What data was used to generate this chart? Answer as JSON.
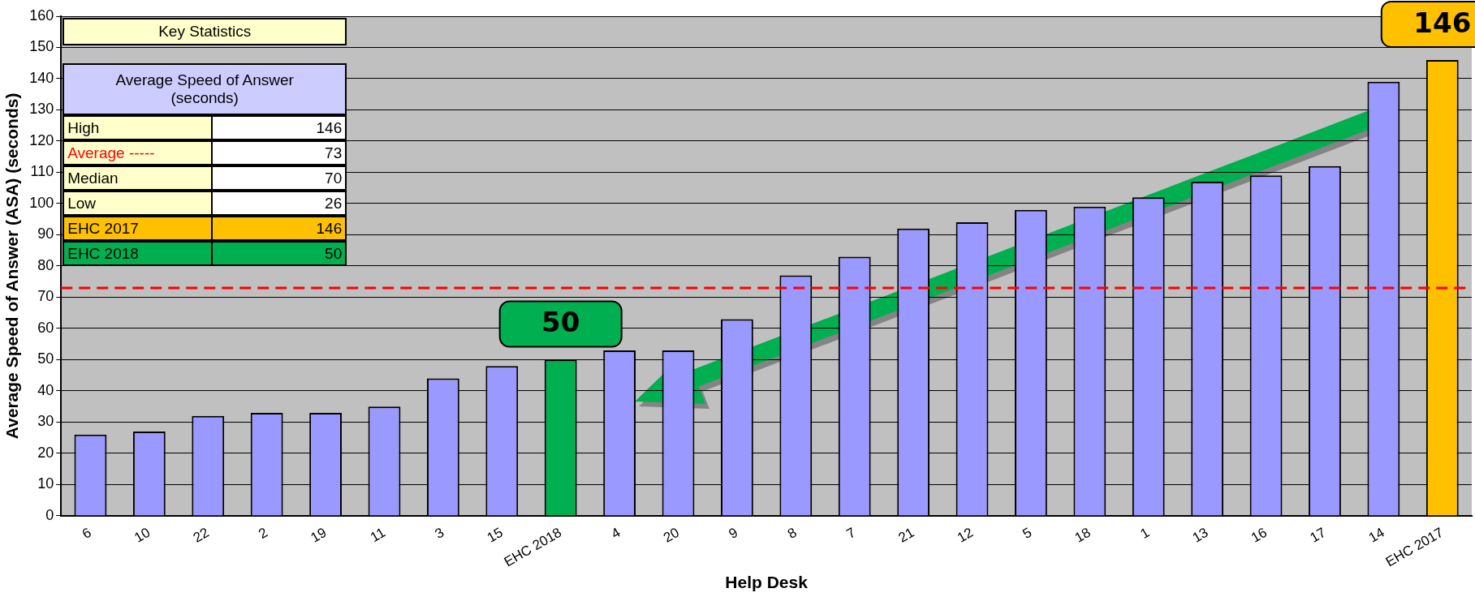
{
  "chart_data": {
    "type": "bar",
    "xlabel": "Help Desk",
    "ylabel": "Average Speed of Answer (ASA) (seconds)",
    "categories": [
      "6",
      "10",
      "22",
      "2",
      "19",
      "11",
      "3",
      "15",
      "EHC 2018",
      "4",
      "20",
      "9",
      "8",
      "7",
      "21",
      "12",
      "5",
      "18",
      "1",
      "13",
      "16",
      "17",
      "14",
      "EHC 2017"
    ],
    "values": [
      26,
      27,
      32,
      33,
      33,
      35,
      44,
      48,
      50,
      53,
      53,
      63,
      77,
      83,
      92,
      94,
      98,
      99,
      102,
      107,
      109,
      112,
      139,
      146
    ],
    "colors": [
      "#9999ff",
      "#9999ff",
      "#9999ff",
      "#9999ff",
      "#9999ff",
      "#9999ff",
      "#9999ff",
      "#9999ff",
      "#00b050",
      "#9999ff",
      "#9999ff",
      "#9999ff",
      "#9999ff",
      "#9999ff",
      "#9999ff",
      "#9999ff",
      "#9999ff",
      "#9999ff",
      "#9999ff",
      "#9999ff",
      "#9999ff",
      "#9999ff",
      "#9999ff",
      "#ffc000"
    ],
    "value_labels": [
      null,
      null,
      null,
      null,
      null,
      null,
      null,
      null,
      "50",
      null,
      null,
      null,
      null,
      null,
      null,
      null,
      null,
      null,
      null,
      null,
      null,
      null,
      null,
      "146"
    ],
    "ylim": [
      0,
      160
    ],
    "yticks": [
      0,
      10,
      20,
      30,
      40,
      50,
      60,
      70,
      80,
      90,
      100,
      110,
      120,
      130,
      140,
      150,
      160
    ],
    "grid": "y",
    "legend": false,
    "ref_lines": [
      {
        "axis": "y",
        "value": 73,
        "color": "#ff0000",
        "line_style": "dashed"
      }
    ],
    "annotations": [
      "Key Statistics",
      "Average Speed of Answer (seconds)",
      "High",
      "146",
      "Average -----",
      "73",
      "Median",
      "70",
      "Low",
      "26",
      "EHC 2017",
      "146",
      "EHC 2018",
      "50"
    ]
  }
}
